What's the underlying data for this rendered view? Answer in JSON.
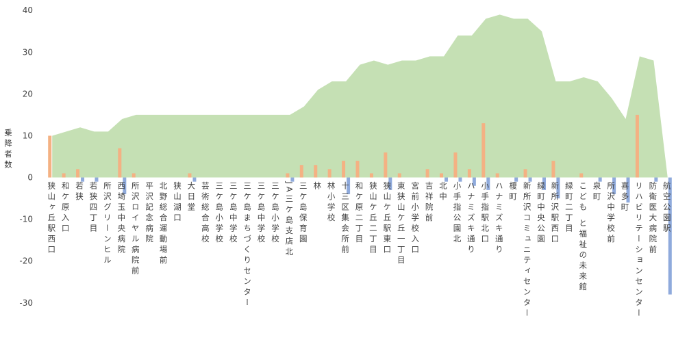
{
  "chart_data": {
    "type": "combo",
    "y_label": "乗降者数",
    "categories": [
      "狭山ヶ丘駅西口",
      "和ケ原入口",
      "若狭",
      "若狭四丁目",
      "所沢グリーンヒル",
      "西埼玉中央病院",
      "所沢ロイヤル病院前",
      "平沢記念病院",
      "北野総合運動場前",
      "狭山湖口",
      "大日堂",
      "芸術総合高校",
      "三ケ島小学校",
      "三ケ島中学校",
      "三ケ島まちづくりセンター",
      "三ケ島中学校",
      "三ケ島小学校",
      "JA三ケ島支店北",
      "三ケ島保育園",
      "林",
      "林小学校",
      "十三区集会所前",
      "和ケ原二丁目",
      "狭山ケ丘二丁目",
      "狭山ケ丘駅東口",
      "東狭山ケ丘一丁目",
      "宮前小学校入口",
      "吉祥院前",
      "北中",
      "小手指公園北",
      "ハナミズキ通り",
      "小手指駅北口",
      "ハナミズキ通り",
      "榎町",
      "新所沢コミュニティセンター",
      "緑町中央公園",
      "新所沢駅西口",
      "緑町二丁目",
      "こども と福祉の未来館",
      "泉町",
      "所沢中学校前",
      "喜多町",
      "リハビリテーションセンター",
      "防衛医大病院前",
      "航空公園駅"
    ],
    "series": [
      {
        "type": "area",
        "color": "#c5e0b4",
        "values": [
          10,
          11,
          12,
          11,
          11,
          14,
          15,
          15,
          15,
          15,
          15,
          15,
          15,
          15,
          15,
          15,
          15,
          15,
          17,
          21,
          23,
          23,
          27,
          28,
          27,
          28,
          28,
          29,
          29,
          34,
          34,
          38,
          39,
          38,
          38,
          35,
          23,
          23,
          24,
          23,
          19,
          14,
          29,
          28,
          0
        ]
      },
      {
        "type": "bar",
        "color": "#f4b183",
        "values": [
          10,
          1,
          2,
          0,
          0,
          7,
          1,
          0,
          0,
          0,
          1,
          0,
          0,
          0,
          0,
          0,
          0,
          1,
          3,
          3,
          2,
          4,
          4,
          1,
          6,
          1,
          0,
          2,
          1,
          6,
          2,
          13,
          1,
          0,
          2,
          0,
          4,
          0,
          1,
          0,
          0,
          0,
          15,
          0,
          0
        ]
      },
      {
        "type": "bar",
        "color": "#8faadc",
        "values": [
          0,
          0,
          -1,
          -1,
          0,
          -4,
          0,
          0,
          0,
          0,
          -1,
          0,
          0,
          0,
          0,
          0,
          0,
          -1,
          0,
          0,
          0,
          -4,
          0,
          0,
          -3,
          0,
          0,
          0,
          -1,
          -1,
          -2,
          -3,
          0,
          -1,
          -1,
          -3,
          -5,
          0,
          0,
          -1,
          -4,
          -6,
          0,
          -1,
          -28
        ]
      }
    ],
    "ylim": [
      -32,
      42
    ],
    "yticks": [
      40,
      30,
      20,
      10,
      0,
      -10,
      -20,
      -30
    ]
  }
}
